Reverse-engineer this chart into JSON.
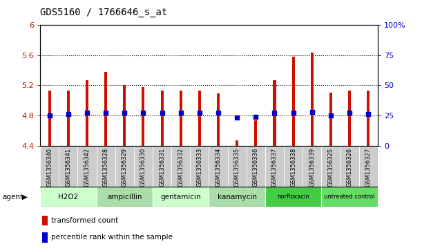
{
  "title": "GDS5160 / 1766646_s_at",
  "samples": [
    "GSM1356340",
    "GSM1356341",
    "GSM1356342",
    "GSM1356328",
    "GSM1356329",
    "GSM1356330",
    "GSM1356331",
    "GSM1356332",
    "GSM1356333",
    "GSM1356334",
    "GSM1356335",
    "GSM1356336",
    "GSM1356337",
    "GSM1356338",
    "GSM1356339",
    "GSM1356325",
    "GSM1356326",
    "GSM1356327"
  ],
  "transformed_count": [
    5.13,
    5.13,
    5.27,
    5.38,
    5.2,
    5.18,
    5.13,
    5.13,
    5.13,
    5.09,
    4.47,
    4.74,
    5.27,
    5.58,
    5.64,
    5.1,
    5.13,
    5.13
  ],
  "percentile_rank": [
    25,
    26,
    27,
    27,
    27,
    27,
    27,
    27,
    27,
    27,
    23,
    24,
    27,
    27,
    28,
    25,
    27,
    26
  ],
  "ylim_left": [
    4.4,
    6.0
  ],
  "ylim_right": [
    0,
    100
  ],
  "yticks_left": [
    4.4,
    4.8,
    5.2,
    5.6,
    6.0
  ],
  "ytick_labels_left": [
    "4.4",
    "4.8",
    "5.2",
    "5.6",
    "6"
  ],
  "yticks_right": [
    0,
    25,
    50,
    75,
    100
  ],
  "ytick_labels_right": [
    "0",
    "25",
    "50",
    "75",
    "100%"
  ],
  "groups": [
    {
      "label": "H2O2",
      "indices": [
        0,
        1,
        2
      ],
      "color": "#ccffcc"
    },
    {
      "label": "ampicillin",
      "indices": [
        3,
        4,
        5
      ],
      "color": "#aaddaa"
    },
    {
      "label": "gentamicin",
      "indices": [
        6,
        7,
        8
      ],
      "color": "#ccffcc"
    },
    {
      "label": "kanamycin",
      "indices": [
        9,
        10,
        11
      ],
      "color": "#aaddaa"
    },
    {
      "label": "norfloxacin",
      "indices": [
        12,
        13,
        14
      ],
      "color": "#44cc44"
    },
    {
      "label": "untreated control",
      "indices": [
        15,
        16,
        17
      ],
      "color": "#66dd66"
    }
  ],
  "bar_color": "#cc1100",
  "dot_color": "#0000cc",
  "bar_bottom": 4.4,
  "bar_width": 0.15,
  "dot_size": 18,
  "grid_linestyle": "dotted",
  "background_color": "#ffffff",
  "tick_label_color_left": "#cc1100",
  "tick_label_color_right": "#0000cc",
  "title_fontsize": 10,
  "legend_items": [
    "transformed count",
    "percentile rank within the sample"
  ],
  "agent_label": "agent",
  "sample_bg_color": "#cccccc",
  "hgrid_at": [
    4.8,
    5.2,
    5.6
  ]
}
